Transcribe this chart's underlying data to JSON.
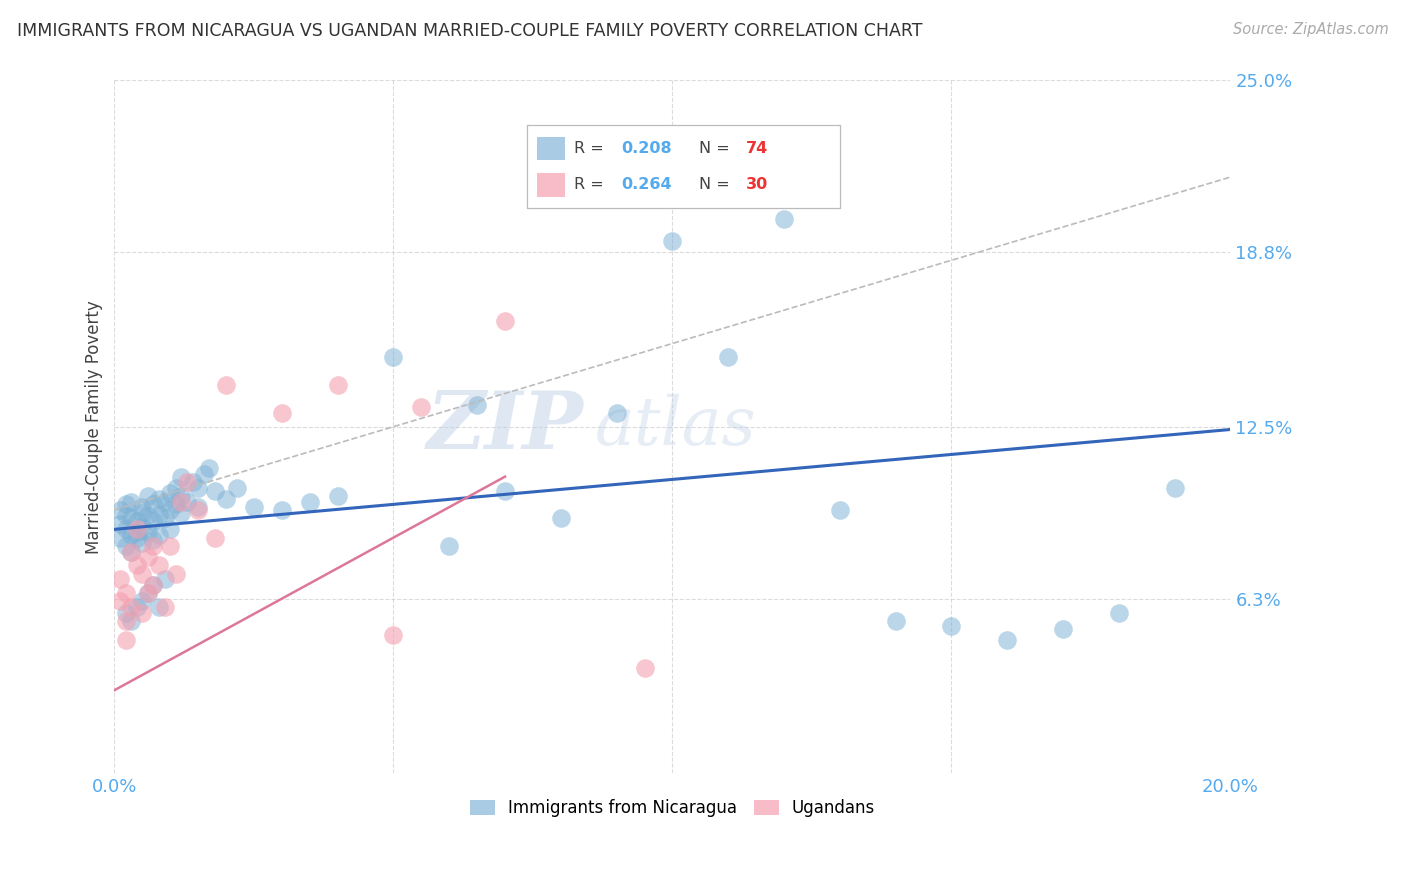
{
  "title": "IMMIGRANTS FROM NICARAGUA VS UGANDAN MARRIED-COUPLE FAMILY POVERTY CORRELATION CHART",
  "source": "Source: ZipAtlas.com",
  "ylabel": "Married-Couple Family Poverty",
  "xlim": [
    0.0,
    0.2
  ],
  "ylim": [
    0.0,
    0.25
  ],
  "ytick_vals": [
    0.063,
    0.125,
    0.188,
    0.25
  ],
  "ytick_labels": [
    "6.3%",
    "12.5%",
    "18.8%",
    "25.0%"
  ],
  "xtick_vals": [
    0.0,
    0.05,
    0.1,
    0.15,
    0.2
  ],
  "xtick_labels": [
    "0.0%",
    "",
    "",
    "",
    "20.0%"
  ],
  "series1_color": "#7BAFD4",
  "series2_color": "#F4A0B0",
  "line1_color": "#3366BB",
  "line2_color": "#DD7799",
  "line_gray_color": "#BBBBBB",
  "watermark": "ZIPatlas",
  "watermark_color": "#C5D8EE",
  "background_color": "#FFFFFF",
  "grid_color": "#CCCCCC",
  "title_color": "#333333",
  "axis_label_color": "#444444",
  "tick_color": "#55AAEE",
  "r_color": "#55AAEE",
  "n_color": "#EE3333",
  "blue_r": "0.208",
  "blue_n": "74",
  "pink_r": "0.264",
  "pink_n": "30",
  "blue_intercept": 0.088,
  "blue_slope": 0.18,
  "pink_intercept": 0.03,
  "pink_slope": 1.1,
  "gray_intercept": 0.095,
  "gray_slope": 0.6,
  "blue_x": [
    0.001,
    0.001,
    0.001,
    0.002,
    0.002,
    0.002,
    0.002,
    0.003,
    0.003,
    0.003,
    0.003,
    0.004,
    0.004,
    0.004,
    0.005,
    0.005,
    0.005,
    0.005,
    0.006,
    0.006,
    0.006,
    0.007,
    0.007,
    0.007,
    0.008,
    0.008,
    0.008,
    0.009,
    0.009,
    0.01,
    0.01,
    0.01,
    0.011,
    0.011,
    0.012,
    0.012,
    0.012,
    0.013,
    0.014,
    0.015,
    0.015,
    0.016,
    0.017,
    0.018,
    0.02,
    0.022,
    0.025,
    0.03,
    0.035,
    0.04,
    0.05,
    0.06,
    0.065,
    0.07,
    0.08,
    0.09,
    0.1,
    0.11,
    0.12,
    0.13,
    0.14,
    0.15,
    0.16,
    0.17,
    0.18,
    0.19,
    0.002,
    0.003,
    0.004,
    0.005,
    0.006,
    0.007,
    0.008,
    0.009
  ],
  "blue_y": [
    0.09,
    0.095,
    0.085,
    0.088,
    0.093,
    0.097,
    0.082,
    0.086,
    0.092,
    0.098,
    0.08,
    0.085,
    0.091,
    0.087,
    0.083,
    0.094,
    0.089,
    0.096,
    0.087,
    0.093,
    0.1,
    0.084,
    0.091,
    0.097,
    0.086,
    0.093,
    0.099,
    0.092,
    0.098,
    0.088,
    0.095,
    0.101,
    0.097,
    0.103,
    0.094,
    0.1,
    0.107,
    0.098,
    0.105,
    0.096,
    0.103,
    0.108,
    0.11,
    0.102,
    0.099,
    0.103,
    0.096,
    0.095,
    0.098,
    0.1,
    0.15,
    0.082,
    0.133,
    0.102,
    0.092,
    0.13,
    0.192,
    0.15,
    0.2,
    0.095,
    0.055,
    0.053,
    0.048,
    0.052,
    0.058,
    0.103,
    0.058,
    0.055,
    0.06,
    0.062,
    0.065,
    0.068,
    0.06,
    0.07
  ],
  "pink_x": [
    0.001,
    0.001,
    0.002,
    0.002,
    0.002,
    0.003,
    0.003,
    0.004,
    0.004,
    0.005,
    0.005,
    0.006,
    0.006,
    0.007,
    0.007,
    0.008,
    0.009,
    0.01,
    0.011,
    0.012,
    0.013,
    0.015,
    0.018,
    0.02,
    0.03,
    0.04,
    0.05,
    0.055,
    0.07,
    0.095
  ],
  "pink_y": [
    0.07,
    0.062,
    0.065,
    0.055,
    0.048,
    0.06,
    0.08,
    0.075,
    0.088,
    0.072,
    0.058,
    0.078,
    0.065,
    0.082,
    0.068,
    0.075,
    0.06,
    0.082,
    0.072,
    0.098,
    0.105,
    0.095,
    0.085,
    0.14,
    0.13,
    0.14,
    0.05,
    0.132,
    0.163,
    0.038
  ]
}
